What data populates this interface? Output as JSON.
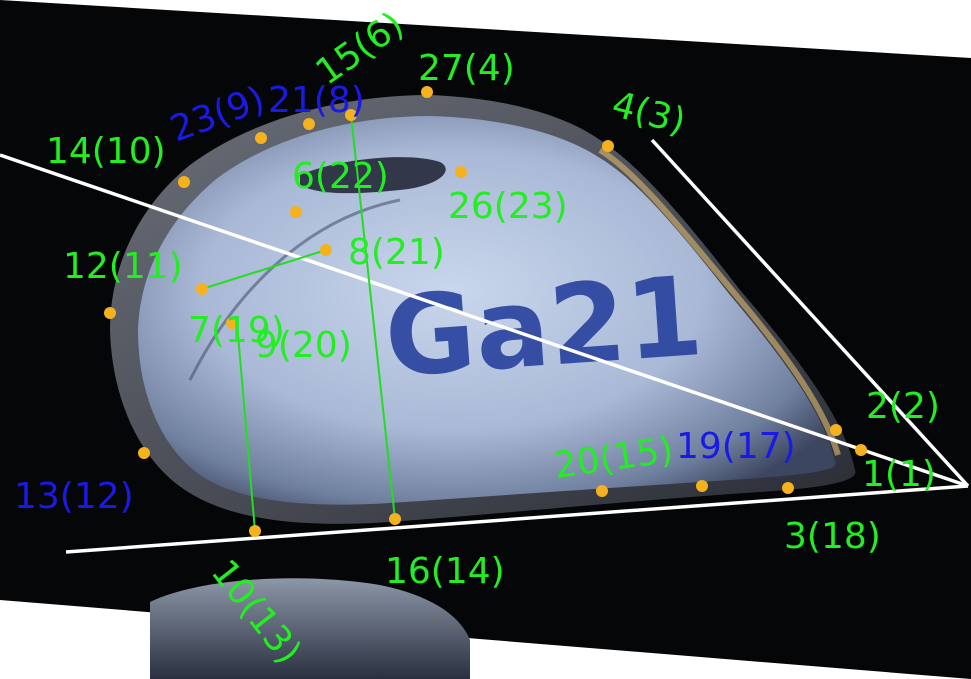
{
  "colors": {
    "label_green": "#22ee22",
    "label_blue": "#1a1ae6",
    "point": "#f5b21e",
    "guide_line": "#ffffff",
    "measure_line": "#22dd22",
    "background": "#050608"
  },
  "shell_marking": "Ga21",
  "labels": {
    "l1": "1(1)",
    "l2": "2(2)",
    "l3": "3(18)",
    "l4": "4(3)",
    "l6": "6(22)",
    "l7": "7(19)",
    "l8": "8(21)",
    "l9": "9(20)",
    "l10": "10(13)",
    "l12": "12(11)",
    "l13": "13(12)",
    "l14": "14(10)",
    "l15": "15(6)",
    "l16": "16(14)",
    "l19": "19(17)",
    "l20": "20(15)",
    "l21": "21(8)",
    "l23": "23(9)",
    "l26": "26(23)",
    "l27": "27(4)"
  }
}
